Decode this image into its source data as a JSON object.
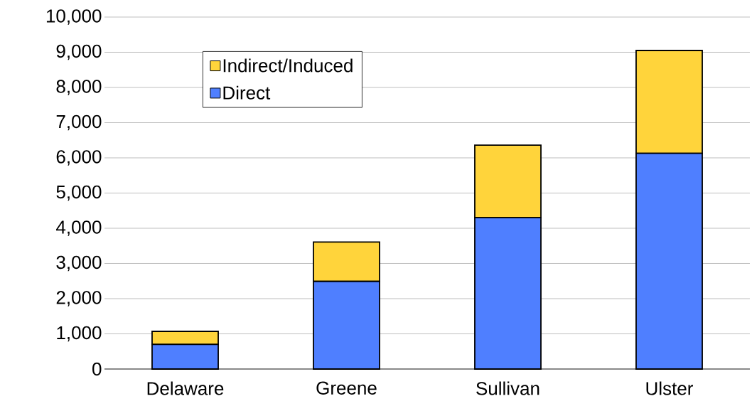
{
  "chart_data": {
    "type": "bar",
    "stacked": true,
    "categories": [
      "Delaware",
      "Greene",
      "Sullivan",
      "Ulster"
    ],
    "series": [
      {
        "name": "Direct",
        "color": "#4f7fff",
        "values": [
          700,
          2490,
          4300,
          6130
        ]
      },
      {
        "name": "Indirect/Induced",
        "color": "#ffd43b",
        "values": [
          370,
          1120,
          2060,
          2920
        ]
      }
    ],
    "ylim": [
      0,
      10000
    ],
    "yticks": [
      0,
      {
        "value": 1000,
        "label": "1,000"
      },
      {
        "value": 2000,
        "label": "2,000"
      },
      {
        "value": 3000,
        "label": "3,000"
      },
      {
        "value": 4000,
        "label": "4,000"
      },
      {
        "value": 5000,
        "label": "5,000"
      },
      {
        "value": 6000,
        "label": "6,000"
      },
      {
        "value": 7000,
        "label": "7,000"
      },
      {
        "value": 8000,
        "label": "8,000"
      },
      {
        "value": 9000,
        "label": "9,000"
      },
      {
        "value": 10000,
        "label": "10,000"
      }
    ],
    "grid": "y",
    "legend": "top left"
  }
}
